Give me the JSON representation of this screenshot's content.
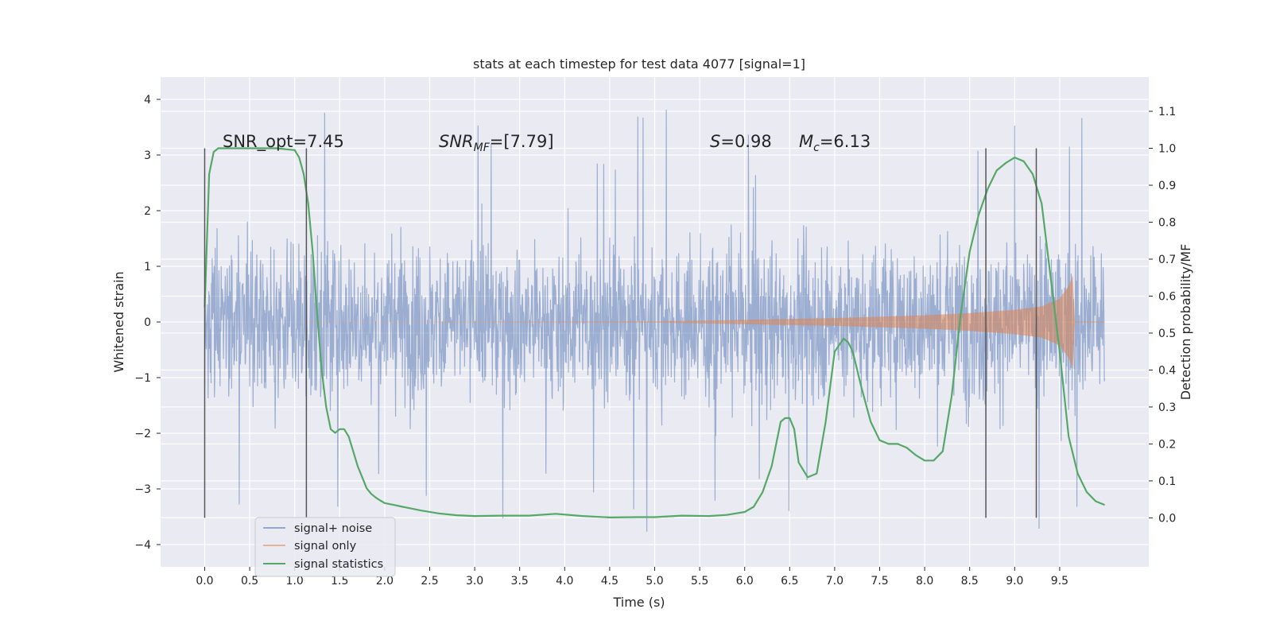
{
  "chart_data": {
    "type": "line",
    "title": "stats at each timestep for test data 4077 [signal=1]",
    "xlabel": "Time (s)",
    "ylabel": "Whitened strain",
    "y2label": "Detection probability/MF",
    "xlim": [
      -0.49,
      10.49
    ],
    "ylim": [
      -4.4,
      4.4
    ],
    "y2lim": [
      -0.1325,
      1.1925
    ],
    "xticks": [
      "0.0",
      "0.5",
      "1.0",
      "1.5",
      "2.0",
      "2.5",
      "3.0",
      "3.5",
      "4.0",
      "4.5",
      "5.0",
      "5.5",
      "6.0",
      "6.5",
      "7.0",
      "7.5",
      "8.0",
      "8.5",
      "9.0",
      "9.5"
    ],
    "yticks": [
      "4",
      "3",
      "2",
      "1",
      "0",
      "−1",
      "−2",
      "−3",
      "−4"
    ],
    "y2ticks": [
      "1.1",
      "1.0",
      "0.9",
      "0.8",
      "0.7",
      "0.6",
      "0.5",
      "0.4",
      "0.3",
      "0.2",
      "0.1",
      "0.0"
    ],
    "grid": true,
    "legend_position": "lower-left",
    "annotations": {
      "snr_opt": "SNR_opt=7.45",
      "snr_mf_base": "SNR",
      "snr_mf_sub": "MF",
      "snr_mf_val": "=[7.79]",
      "s_var": "S",
      "s_val": "=0.98",
      "mc_var": "M",
      "mc_sub": "c",
      "mc_val": "=6.13"
    },
    "vertical_markers": [
      0.0,
      1.13,
      8.68,
      9.24
    ],
    "series": [
      {
        "name": "signal+ noise",
        "color": "#4c72b0",
        "description": "whitened noisy strain, amplitude approx ±1.3 with spikes up to ±4",
        "x_range": [
          0.0,
          10.0
        ]
      },
      {
        "name": "signal only",
        "color": "#dd8452",
        "envelope_x": [
          0.0,
          5.0,
          6.0,
          7.0,
          8.0,
          8.5,
          9.0,
          9.3,
          9.5,
          9.6,
          9.65,
          9.67
        ],
        "envelope_amp": [
          0.0,
          0.01,
          0.04,
          0.07,
          0.12,
          0.16,
          0.22,
          0.28,
          0.42,
          0.65,
          0.85,
          0.0
        ]
      },
      {
        "name": "signal statistics",
        "color": "#55a868",
        "x": [
          0.0,
          0.05,
          0.1,
          0.15,
          0.2,
          0.3,
          0.5,
          0.8,
          1.0,
          1.05,
          1.1,
          1.15,
          1.2,
          1.25,
          1.3,
          1.35,
          1.4,
          1.45,
          1.5,
          1.55,
          1.6,
          1.65,
          1.7,
          1.75,
          1.8,
          1.85,
          1.9,
          1.95,
          2.0,
          2.1,
          2.2,
          2.4,
          2.6,
          2.8,
          3.0,
          3.3,
          3.6,
          3.9,
          4.2,
          4.5,
          4.8,
          5.0,
          5.3,
          5.6,
          5.8,
          6.0,
          6.1,
          6.2,
          6.3,
          6.4,
          6.45,
          6.5,
          6.55,
          6.6,
          6.7,
          6.8,
          6.9,
          7.0,
          7.1,
          7.15,
          7.2,
          7.3,
          7.4,
          7.5,
          7.6,
          7.7,
          7.8,
          7.9,
          8.0,
          8.1,
          8.2,
          8.3,
          8.4,
          8.5,
          8.6,
          8.7,
          8.8,
          8.9,
          9.0,
          9.1,
          9.2,
          9.3,
          9.4,
          9.5,
          9.6,
          9.7,
          9.8,
          9.9,
          10.0
        ],
        "values": [
          0.57,
          0.93,
          0.99,
          1.0,
          1.0,
          1.0,
          1.0,
          1.0,
          0.995,
          0.975,
          0.93,
          0.85,
          0.72,
          0.55,
          0.4,
          0.3,
          0.24,
          0.23,
          0.24,
          0.24,
          0.22,
          0.18,
          0.14,
          0.11,
          0.08,
          0.065,
          0.055,
          0.047,
          0.04,
          0.035,
          0.03,
          0.02,
          0.012,
          0.007,
          0.005,
          0.006,
          0.006,
          0.011,
          0.005,
          0.001,
          0.002,
          0.002,
          0.006,
          0.005,
          0.008,
          0.016,
          0.03,
          0.07,
          0.14,
          0.26,
          0.27,
          0.27,
          0.24,
          0.15,
          0.11,
          0.12,
          0.26,
          0.45,
          0.485,
          0.475,
          0.45,
          0.35,
          0.26,
          0.21,
          0.2,
          0.2,
          0.19,
          0.17,
          0.155,
          0.155,
          0.18,
          0.33,
          0.55,
          0.72,
          0.82,
          0.89,
          0.94,
          0.96,
          0.975,
          0.965,
          0.93,
          0.85,
          0.65,
          0.45,
          0.22,
          0.12,
          0.07,
          0.045,
          0.035
        ]
      }
    ]
  }
}
